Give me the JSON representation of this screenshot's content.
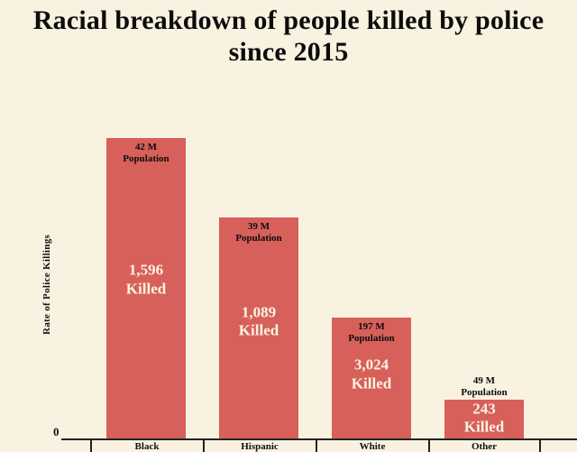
{
  "chart_data": {
    "type": "bar",
    "title": "Racial breakdown of people killed by police since 2015",
    "xlabel": "",
    "ylabel": "Rate of Police Killings",
    "origin_label": "0",
    "categories": [
      "Black",
      "Hispanic",
      "White",
      "Other"
    ],
    "series": [
      {
        "name": "Rate of Police Killings",
        "values": [
          38,
          27.9,
          15.3,
          5
        ]
      }
    ],
    "bar_labels": [
      {
        "population": "42 M",
        "killed": "1,596"
      },
      {
        "population": "39 M",
        "killed": "1,089"
      },
      {
        "population": "197 M",
        "killed": "3,024"
      },
      {
        "population": "49 M",
        "killed": "243"
      }
    ],
    "label_words": {
      "population": "Population",
      "killed": "Killed"
    },
    "ylim": [
      0,
      40
    ],
    "grid": false,
    "legend": false,
    "bar_color": "#d7605a",
    "background": "#faf2e1",
    "text_dark": "#0c0c0c",
    "text_light": "#fbf3e3"
  }
}
